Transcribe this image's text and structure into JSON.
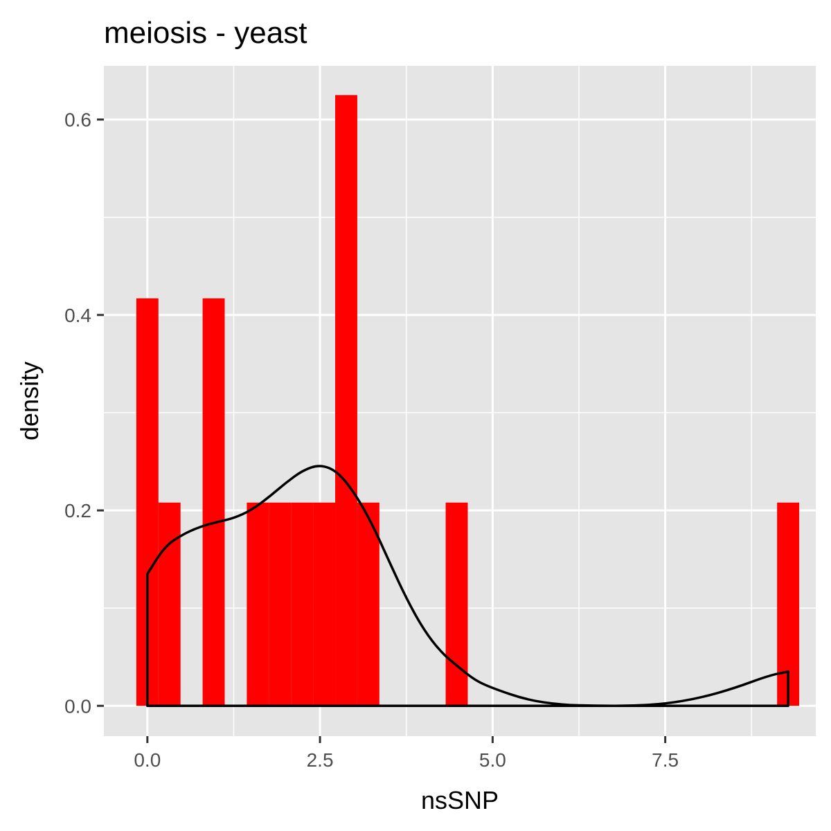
{
  "chart_data": {
    "type": "bar",
    "title": "meiosis - yeast",
    "xlabel": "nsSNP",
    "ylabel": "density",
    "xlim": [
      -0.63,
      9.68
    ],
    "ylim": [
      -0.031,
      0.655
    ],
    "x_ticks": [
      0.0,
      2.5,
      5.0,
      7.5
    ],
    "x_tick_labels": [
      "0.0",
      "2.5",
      "5.0",
      "7.5"
    ],
    "y_ticks": [
      0.0,
      0.2,
      0.4,
      0.6
    ],
    "y_tick_labels": [
      "0.0",
      "0.2",
      "0.4",
      "0.6"
    ],
    "grid": true,
    "background": "#e5e5e5",
    "histogram": {
      "fill": "#ff0000",
      "bin_width": 0.32,
      "bins": [
        {
          "x": 0.0,
          "density": 0.417
        },
        {
          "x": 0.32,
          "density": 0.208
        },
        {
          "x": 0.96,
          "density": 0.417
        },
        {
          "x": 1.6,
          "density": 0.208
        },
        {
          "x": 1.92,
          "density": 0.208
        },
        {
          "x": 2.24,
          "density": 0.208
        },
        {
          "x": 2.56,
          "density": 0.208
        },
        {
          "x": 2.88,
          "density": 0.625
        },
        {
          "x": 3.2,
          "density": 0.208
        },
        {
          "x": 4.48,
          "density": 0.208
        },
        {
          "x": 9.28,
          "density": 0.208
        }
      ]
    },
    "density_curve": {
      "color": "#000000",
      "x": [
        0.0,
        0.25,
        0.5,
        0.75,
        1.0,
        1.25,
        1.5,
        1.75,
        2.0,
        2.25,
        2.5,
        2.75,
        3.0,
        3.25,
        3.5,
        3.75,
        4.0,
        4.25,
        4.5,
        4.75,
        5.0,
        5.5,
        6.0,
        6.5,
        7.0,
        7.5,
        8.0,
        8.5,
        9.0,
        9.28
      ],
      "y": [
        0.135,
        0.163,
        0.175,
        0.183,
        0.188,
        0.192,
        0.2,
        0.213,
        0.228,
        0.241,
        0.247,
        0.24,
        0.218,
        0.187,
        0.148,
        0.11,
        0.078,
        0.055,
        0.04,
        0.026,
        0.018,
        0.006,
        0.001,
        0.0,
        0.0,
        0.002,
        0.008,
        0.018,
        0.031,
        0.035
      ]
    }
  }
}
